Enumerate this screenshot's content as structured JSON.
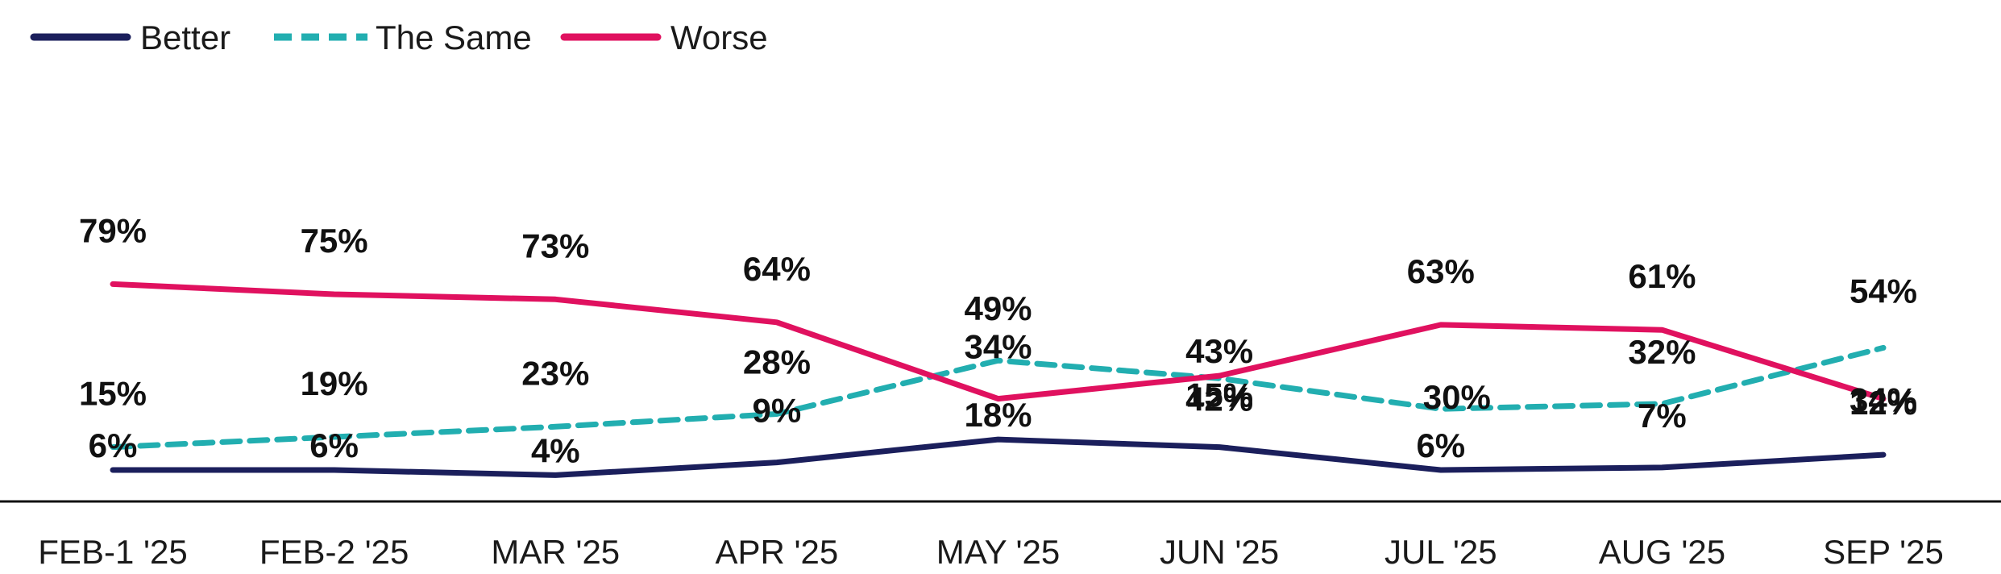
{
  "chart_data": {
    "type": "line",
    "title": "",
    "xlabel": "",
    "ylabel": "",
    "ylim": [
      0,
      90
    ],
    "grid": false,
    "legend_position": "top-left",
    "categories": [
      "FEB-1 '25",
      "FEB-2 '25",
      "MAR '25",
      "APR '25",
      "MAY '25",
      "JUN '25",
      "JUL '25",
      "AUG '25",
      "SEP '25"
    ],
    "series": [
      {
        "name": "Better",
        "values": [
          6,
          6,
          4,
          9,
          18,
          15,
          6,
          7,
          12
        ],
        "color": "#1b1f5c",
        "dash": "solid"
      },
      {
        "name": "The Same",
        "values": [
          15,
          19,
          23,
          28,
          49,
          42,
          30,
          32,
          54
        ],
        "color": "#22aeb0",
        "dash": "dashed"
      },
      {
        "name": "Worse",
        "values": [
          79,
          75,
          73,
          64,
          34,
          43,
          63,
          61,
          34
        ],
        "color": "#e0115f",
        "dash": "solid"
      }
    ],
    "value_suffix": "%"
  }
}
